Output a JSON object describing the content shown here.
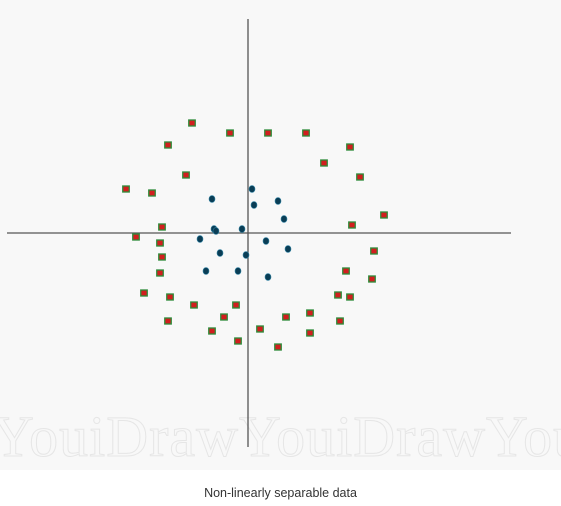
{
  "caption": "Non-linearly separable data",
  "watermark": "YouiDrawYouiDrawYouiD",
  "colors": {
    "background": "#f8f8f8",
    "axis": "#555555",
    "inner_point": "#0a3d55",
    "outer_square_fill": "#d21e1e",
    "outer_square_border": "#2e8b3a",
    "watermark": "#e9e9e9"
  },
  "chart_data": {
    "type": "scatter",
    "title": "Non-linearly separable data",
    "xlabel": "",
    "ylabel": "",
    "xlim": [
      -12,
      13.2
    ],
    "ylim": [
      -10.7,
      10.7
    ],
    "grid": false,
    "legend": "none",
    "series": [
      {
        "marker": "circle",
        "points": [
          [
            0.2,
            2.2
          ],
          [
            -1.8,
            1.7
          ],
          [
            0.3,
            1.4
          ],
          [
            1.5,
            1.6
          ],
          [
            1.8,
            0.7
          ],
          [
            -0.3,
            0.2
          ],
          [
            -1.7,
            0.2
          ],
          [
            -1.6,
            0.1
          ],
          [
            0.9,
            -0.4
          ],
          [
            -2.4,
            -0.3
          ],
          [
            2.0,
            -0.8
          ],
          [
            -1.4,
            -1.0
          ],
          [
            -0.1,
            -1.1
          ],
          [
            -2.1,
            -1.9
          ],
          [
            -0.5,
            -1.9
          ],
          [
            1.0,
            -2.2
          ]
        ]
      },
      {
        "marker": "square",
        "points": [
          [
            -2.8,
            5.5
          ],
          [
            -0.9,
            5.0
          ],
          [
            1.0,
            5.0
          ],
          [
            2.9,
            5.0
          ],
          [
            -4.0,
            4.4
          ],
          [
            5.1,
            4.3
          ],
          [
            3.8,
            3.5
          ],
          [
            -3.1,
            2.9
          ],
          [
            5.6,
            2.8
          ],
          [
            -6.1,
            2.2
          ],
          [
            -4.8,
            2.0
          ],
          [
            6.8,
            0.9
          ],
          [
            -4.3,
            0.3
          ],
          [
            5.2,
            0.4
          ],
          [
            -5.6,
            -0.2
          ],
          [
            -4.4,
            -0.5
          ],
          [
            6.3,
            -0.9
          ],
          [
            -4.3,
            -1.2
          ],
          [
            4.9,
            -1.9
          ],
          [
            -4.4,
            -2.0
          ],
          [
            6.2,
            -2.3
          ],
          [
            -5.2,
            -3.0
          ],
          [
            -3.9,
            -3.2
          ],
          [
            4.5,
            -3.1
          ],
          [
            5.1,
            -3.2
          ],
          [
            -2.7,
            -3.6
          ],
          [
            -0.6,
            -3.6
          ],
          [
            -1.2,
            -4.2
          ],
          [
            1.9,
            -4.2
          ],
          [
            3.1,
            -4.0
          ],
          [
            -4.0,
            -4.4
          ],
          [
            4.6,
            -4.4
          ],
          [
            -1.8,
            -4.9
          ],
          [
            0.6,
            -4.8
          ],
          [
            3.1,
            -5.0
          ],
          [
            -0.5,
            -5.4
          ],
          [
            1.5,
            -5.7
          ]
        ]
      }
    ]
  }
}
